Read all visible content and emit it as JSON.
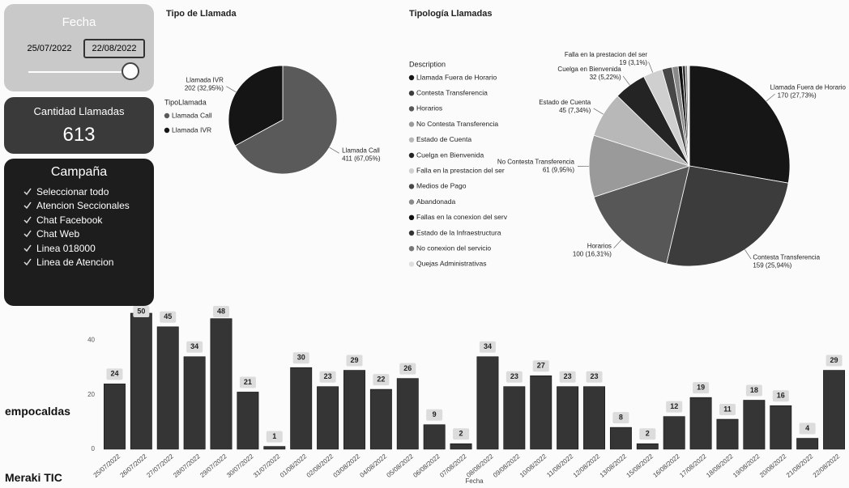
{
  "filter": {
    "title": "Fecha",
    "start": "25/07/2022",
    "end": "22/08/2022"
  },
  "card": {
    "title": "Cantidad Llamadas",
    "value": 613
  },
  "campaign": {
    "title": "Campaña",
    "items": [
      "Seleccionar todo",
      "Atencion Seccionales",
      "Chat Facebook",
      "Chat Web",
      "Linea 018000",
      "Linea de Atencion"
    ]
  },
  "logos": [
    "empocaldas",
    "Meraki TIC"
  ],
  "chart_data": [
    {
      "type": "pie",
      "title": "Tipo de Llamada",
      "legend_title": "TipoLlamada",
      "categories": [
        "Llamada Call",
        "Llamada IVR"
      ],
      "values": [
        411,
        202
      ],
      "value_labels": [
        "411 (67,05%)",
        "202 (32,95%)"
      ],
      "colors": [
        "#5a5a5a",
        "#151515"
      ]
    },
    {
      "type": "pie",
      "title": "Tipología Llamadas",
      "legend_title": "Description",
      "categories": [
        "Llamada Fuera de Horario",
        "Contesta Transferencia",
        "Horarios",
        "No Contesta Transferencia",
        "Estado de Cuenta",
        "Cuelga en Bienvenida",
        "Falla en la prestacion del ser",
        "Medios de Pago",
        "Abandonada",
        "Fallas en la conexion del serv",
        "Estado de la Infraestructura",
        "No conexion del servicio",
        "Quejas Administrativas"
      ],
      "values": [
        170,
        159,
        100,
        61,
        45,
        32,
        19,
        10,
        6,
        4,
        3,
        2,
        2
      ],
      "value_labels": [
        "170 (27,73%)",
        "159 (25,94%)",
        "100 (16,31%)",
        "61 (9,95%)",
        "45 (7,34%)",
        "32 (5,22%)",
        "19 (3,1%)",
        null,
        null,
        null,
        null,
        null,
        null
      ],
      "colors": [
        "#161616",
        "#3c3c3c",
        "#575757",
        "#9a9a9a",
        "#b8b8b8",
        "#242424",
        "#cfcfcf",
        "#474747",
        "#8a8a8a",
        "#101010",
        "#333333",
        "#777777",
        "#dedede"
      ]
    },
    {
      "type": "bar",
      "x_label": "Fecha",
      "categories": [
        "25/07/2022",
        "26/07/2022",
        "27/07/2022",
        "28/07/2022",
        "29/07/2022",
        "30/07/2022",
        "31/07/2022",
        "01/08/2022",
        "02/08/2022",
        "03/08/2022",
        "04/08/2022",
        "05/08/2022",
        "06/08/2022",
        "07/08/2022",
        "08/08/2022",
        "09/08/2022",
        "10/08/2022",
        "11/08/2022",
        "12/08/2022",
        "13/08/2022",
        "15/08/2022",
        "16/08/2022",
        "17/08/2022",
        "18/08/2022",
        "19/08/2022",
        "20/08/2022",
        "21/08/2022",
        "22/08/2022"
      ],
      "values": [
        24,
        50,
        45,
        34,
        48,
        21,
        1,
        30,
        23,
        29,
        22,
        26,
        9,
        2,
        34,
        23,
        27,
        23,
        23,
        8,
        2,
        12,
        19,
        11,
        18,
        16,
        4,
        29
      ],
      "color": "#353535",
      "ylim": [
        0,
        50
      ],
      "yticks": [
        0,
        20,
        40
      ]
    }
  ]
}
